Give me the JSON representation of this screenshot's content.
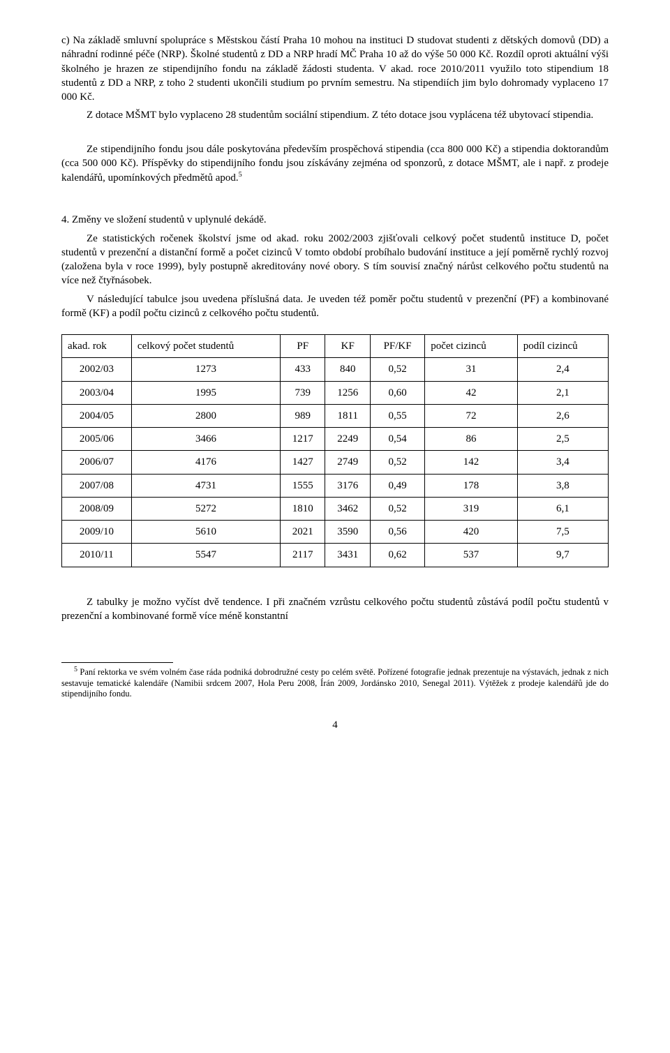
{
  "paragraphs": {
    "p1": "c) Na základě  smluvní spolupráce s Městskou částí Praha 10 mohou na instituci D studovat studenti z dětských domovů (DD) a náhradní rodinné péče (NRP). Školné studentů z DD a NRP hradí MČ Praha 10 až do výše 50 000 Kč. Rozdíl oproti aktuální výši školného je hrazen ze stipendijního fondu na základě žádosti studenta. V akad. roce 2010/2011 využilo toto stipendium 18 studentů z DD a NRP, z toho 2 studenti ukončili studium po prvním semestru. Na stipendiích jim bylo dohromady vyplaceno 17 000 Kč.",
    "p2": "Z dotace MŠMT bylo vyplaceno 28 studentům sociální stipendium. Z této dotace jsou vyplácena též ubytovací stipendia.",
    "p3_a": "Ze stipendijního fondu jsou dále poskytována především prospěchová stipendia (cca 800 000 Kč) a stipendia doktorandům (cca 500 000 Kč). Příspěvky do stipendijního fondu jsou získávány zejména od sponzorů, z dotace MŠMT, ale i např. z prodeje kalendářů, upomínkových předmětů apod.",
    "p3_sup": "5",
    "h4": "4. Změny ve složení studentů v uplynulé dekádě.",
    "p4": "Ze statistických ročenek školství jsme od akad. roku 2002/2003 zjišťovali celkový počet studentů instituce D, počet studentů v prezenční a distanční formě a počet cizinců V tomto období probíhalo budování instituce a její poměrně rychlý rozvoj (založena byla v roce 1999), byly postupně akreditovány nové obory. S tím souvisí značný nárůst celkového počtu studentů na více než čtyřnásobek.",
    "p5": "V následující tabulce jsou uvedena příslušná data. Je uveden též poměr počtu studentů v prezenční (PF) a kombinované formě (KF) a podíl počtu cizinců z celkového počtu studentů.",
    "p6": "Z tabulky je možno vyčíst dvě tendence. I při značném vzrůstu celkového počtu studentů zůstává podíl počtu studentů v prezenční a kombinované formě více méně konstantní"
  },
  "table": {
    "headers": [
      "akad. rok",
      "celkový počet studentů",
      "PF",
      "KF",
      "PF/KF",
      "počet cizinců",
      "podíl cizinců"
    ],
    "rows": [
      [
        "2002/03",
        "1273",
        "433",
        "840",
        "0,52",
        "31",
        "2,4"
      ],
      [
        "2003/04",
        "1995",
        "739",
        "1256",
        "0,60",
        "42",
        "2,1"
      ],
      [
        "2004/05",
        "2800",
        "989",
        "1811",
        "0,55",
        "72",
        "2,6"
      ],
      [
        "2005/06",
        "3466",
        "1217",
        "2249",
        "0,54",
        "86",
        "2,5"
      ],
      [
        "2006/07",
        "4176",
        "1427",
        "2749",
        "0,52",
        "142",
        "3,4"
      ],
      [
        "2007/08",
        "4731",
        "1555",
        "3176",
        "0,49",
        "178",
        "3,8"
      ],
      [
        "2008/09",
        "5272",
        "1810",
        "3462",
        "0,52",
        "319",
        "6,1"
      ],
      [
        "2009/10",
        "5610",
        "2021",
        "3590",
        "0,56",
        "420",
        "7,5"
      ],
      [
        "2010/11",
        "5547",
        "2117",
        "3431",
        "0,62",
        "537",
        "9,7"
      ]
    ]
  },
  "footnote": {
    "marker": "5",
    "text": " Paní rektorka ve svém volném čase ráda podniká dobrodružné cesty po celém světě. Pořízené fotografie jednak prezentuje na výstavách, jednak z nich sestavuje tematické kalendáře (Namibii srdcem 2007, Hola Peru 2008, Írán 2009, Jordánsko 2010, Senegal 2011). Výtěžek z prodeje kalendářů jde do stipendijního fondu."
  },
  "page_number": "4"
}
